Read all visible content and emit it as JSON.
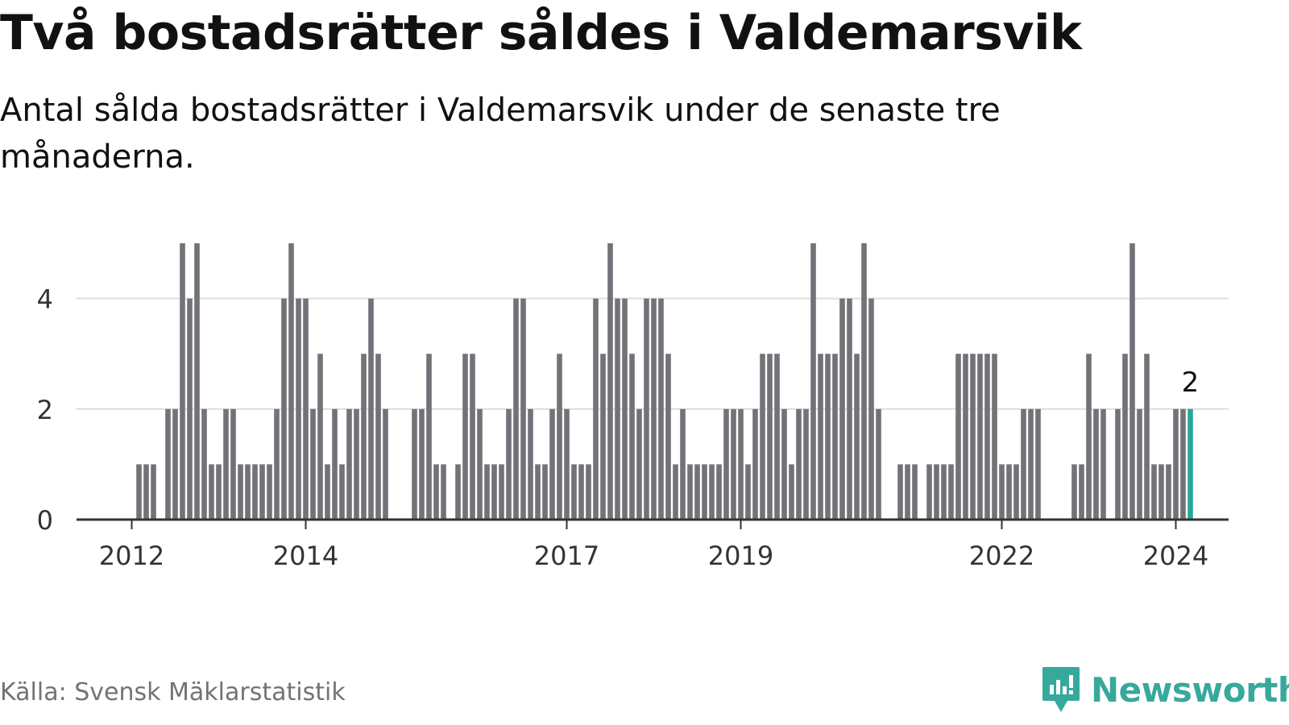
{
  "title": "Två bostadsrätter såldes i Valdemarsvik",
  "subtitle": "Antal sålda bostadsrätter i Valdemarsvik under de senaste tre månaderna.",
  "source": "Källa: Svensk Mäklarstatistik",
  "brand": {
    "name": "Newsworthy",
    "color": "#37a99c"
  },
  "colors": {
    "bar": "#737278",
    "highlight": "#26a69a",
    "grid": "#dddddd",
    "axis": "#333333"
  },
  "chart_data": {
    "type": "bar",
    "title": "Två bostadsrätter såldes i Valdemarsvik",
    "xlabel": "",
    "ylabel": "",
    "ylim": [
      0,
      5
    ],
    "y_ticks": [
      0,
      2,
      4
    ],
    "grid": true,
    "x_start": {
      "year": 2012,
      "month": 1
    },
    "x_tick_labels": [
      "2012",
      "2014",
      "2017",
      "2019",
      "2022",
      "2024"
    ],
    "values": [
      0,
      1,
      1,
      1,
      0,
      2,
      2,
      5,
      4,
      5,
      2,
      1,
      1,
      2,
      2,
      1,
      1,
      1,
      1,
      1,
      2,
      4,
      5,
      4,
      4,
      2,
      3,
      1,
      2,
      1,
      2,
      2,
      3,
      4,
      3,
      2,
      0,
      0,
      0,
      2,
      2,
      3,
      1,
      1,
      0,
      1,
      3,
      3,
      2,
      1,
      1,
      1,
      2,
      4,
      4,
      2,
      1,
      1,
      2,
      3,
      2,
      1,
      1,
      1,
      4,
      3,
      5,
      4,
      4,
      3,
      2,
      4,
      4,
      4,
      3,
      1,
      2,
      1,
      1,
      1,
      1,
      1,
      2,
      2,
      2,
      1,
      2,
      3,
      3,
      3,
      2,
      1,
      2,
      2,
      5,
      3,
      3,
      3,
      4,
      4,
      3,
      5,
      4,
      2,
      0,
      0,
      1,
      1,
      1,
      0,
      1,
      1,
      1,
      1,
      3,
      3,
      3,
      3,
      3,
      3,
      1,
      1,
      1,
      2,
      2,
      2,
      0,
      0,
      0,
      0,
      1,
      1,
      3,
      2,
      2,
      0,
      2,
      3,
      5,
      2,
      3,
      1,
      1,
      1,
      2,
      2,
      2
    ],
    "highlight": {
      "label": "2",
      "value": 2
    }
  }
}
